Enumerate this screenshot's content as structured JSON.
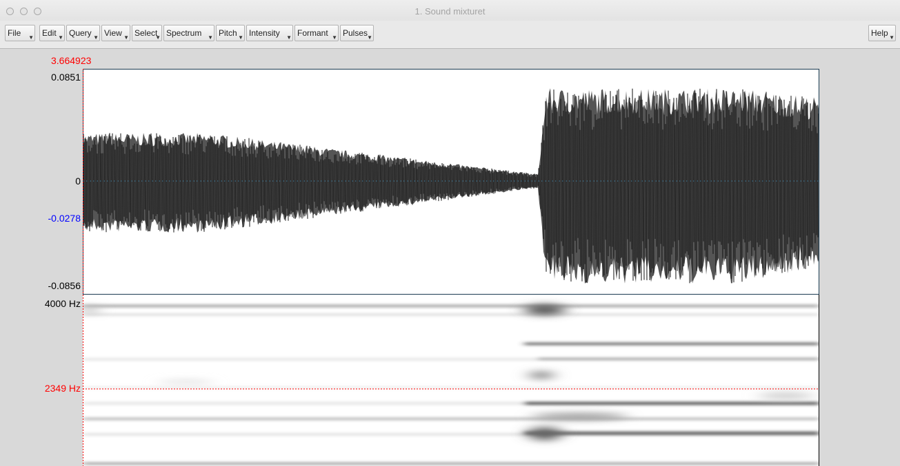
{
  "window": {
    "title": "1. Sound mixturet",
    "traffic_lights": [
      "close",
      "minimize",
      "zoom"
    ]
  },
  "menubar": {
    "items": [
      "File",
      "Edit",
      "Query",
      "View",
      "Select",
      "Spectrum",
      "Pitch",
      "Intensity",
      "Formant",
      "Pulses"
    ],
    "help_label": "Help"
  },
  "editor": {
    "cursor_time": "3.664923",
    "waveform": {
      "top_label": "0.0851",
      "zero_label": "0",
      "cursor_label": "-0.0278",
      "bottom_label": "-0.0856"
    },
    "spectrogram": {
      "top_label": "4000 Hz",
      "cursor_label": "2349 Hz"
    }
  },
  "colors": {
    "cursor_red": "#ff0000",
    "cursor_blue": "#0000ff",
    "waveform_fill": "#555555",
    "panel_background": "#d9d9d9"
  }
}
